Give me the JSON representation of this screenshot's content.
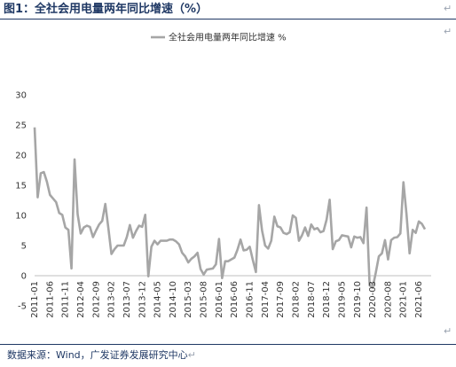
{
  "figure": {
    "title": "图1：全社会用电量两年同比增速（%）",
    "paragraph_mark": "↵",
    "source": "数据来源：Wind，广发证券发展研究中心"
  },
  "chart_data": {
    "type": "line",
    "title": "",
    "xlabel": "",
    "ylabel": "",
    "ylim": [
      -5,
      30
    ],
    "yticks": [
      -5,
      0,
      5,
      10,
      15,
      20,
      25,
      30
    ],
    "grid": false,
    "legend_position": "top-center",
    "line_color": "#a6a6a6",
    "x_ticks": [
      "2011-01",
      "2011-06",
      "2011-11",
      "2012-04",
      "2012-09",
      "2013-02",
      "2013-07",
      "2013-12",
      "2014-05",
      "2014-10",
      "2015-03",
      "2015-08",
      "2016-01",
      "2016-06",
      "2016-11",
      "2017-04",
      "2017-09",
      "2018-02",
      "2018-07",
      "2018-12",
      "2019-05",
      "2019-10",
      "2020-03",
      "2020-08",
      "2021-01",
      "2021-06"
    ],
    "series": [
      {
        "name": "全社会用电量两年同比增速 %",
        "start": "2011-01",
        "values": [
          24.6,
          13.0,
          17.0,
          17.2,
          15.6,
          13.4,
          12.8,
          12.2,
          10.4,
          10.1,
          8.0,
          7.6,
          1.2,
          19.3,
          10.2,
          7.0,
          8.0,
          8.3,
          8.1,
          6.4,
          7.5,
          8.5,
          9.1,
          11.9,
          7.9,
          3.6,
          4.4,
          5.0,
          5.0,
          5.0,
          6.4,
          8.4,
          6.3,
          7.4,
          8.3,
          8.1,
          10.1,
          -0.1,
          4.8,
          5.8,
          5.2,
          5.8,
          5.8,
          5.8,
          6.0,
          6.0,
          5.7,
          5.2,
          3.8,
          3.2,
          2.2,
          2.8,
          3.2,
          3.8,
          1.1,
          0.2,
          1.0,
          1.1,
          1.2,
          1.9,
          6.1,
          -0.4,
          2.4,
          2.4,
          2.7,
          3.0,
          4.3,
          6.0,
          4.2,
          4.3,
          4.8,
          2.6,
          0.6,
          11.7,
          7.5,
          5.0,
          4.5,
          5.8,
          9.8,
          8.2,
          8.0,
          7.1,
          6.9,
          7.2,
          10.0,
          9.6,
          5.8,
          6.7,
          8.0,
          6.6,
          8.5,
          7.7,
          7.9,
          7.2,
          7.4,
          9.3,
          12.6,
          4.4,
          5.7,
          5.9,
          6.7,
          6.6,
          6.5,
          4.7,
          6.5,
          6.3,
          6.4,
          5.4,
          11.3,
          -1.6,
          -2.0,
          0.5,
          3.2,
          3.7,
          5.9,
          2.7,
          5.9,
          6.3,
          6.4,
          7.0,
          15.5,
          10.2,
          3.7,
          7.6,
          7.1,
          9.0,
          8.6,
          7.7
        ]
      }
    ]
  }
}
